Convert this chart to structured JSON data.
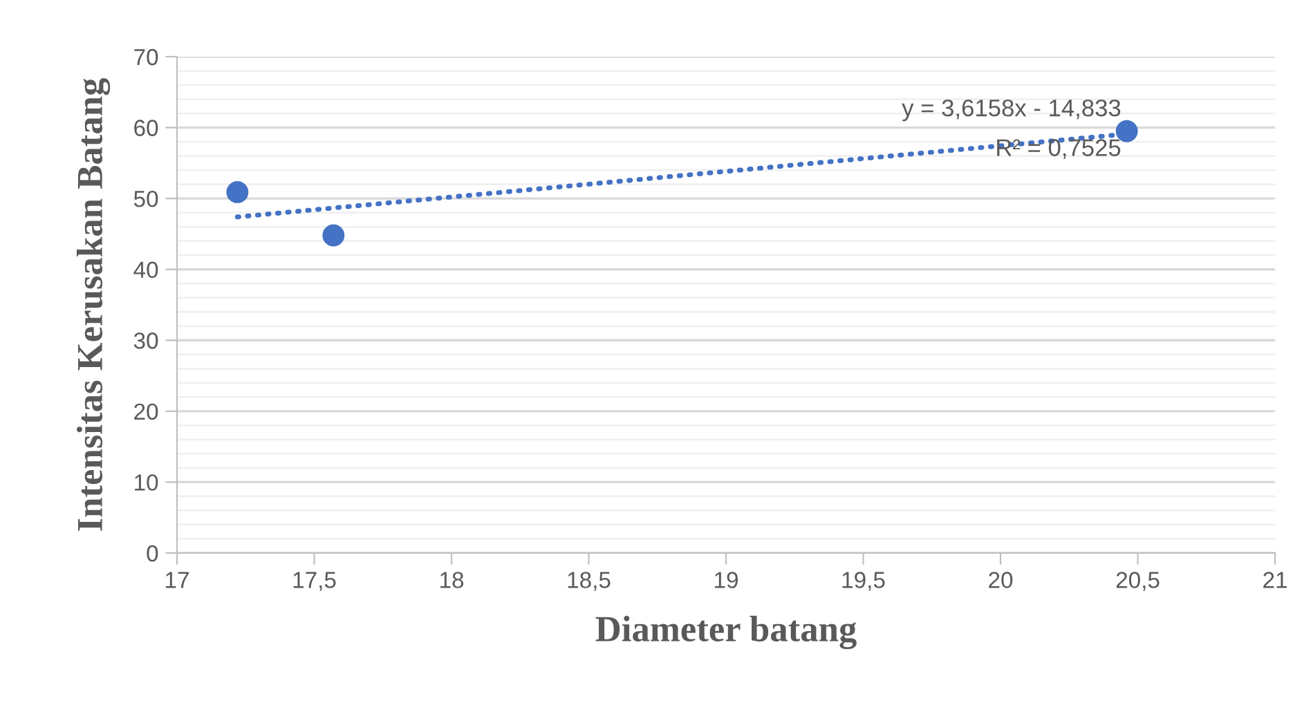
{
  "chart_data": {
    "type": "scatter",
    "xlabel": "Diameter batang",
    "ylabel": "Intensitas Kerusakan Batang",
    "series": [
      {
        "color": "#4472c4",
        "x": [
          17.22,
          17.57,
          20.46
        ],
        "values": [
          50.9,
          44.8,
          59.5
        ],
        "marker": "circle"
      },
      {
        "type": "line",
        "color": "#4472c4",
        "x": [
          17.22,
          20.46
        ],
        "values": [
          47.4,
          59.1
        ],
        "line_style": "dotted",
        "marker": "none"
      }
    ],
    "annotations": [
      "y = 3,6158x - 14,833",
      "R² = 0,7525"
    ],
    "xlim": [
      17,
      21
    ],
    "xticks": [
      17,
      {
        "value": 17.5,
        "label": "17,5"
      },
      18,
      {
        "value": 18.5,
        "label": "18,5"
      },
      19,
      {
        "value": 19.5,
        "label": "19,5"
      },
      20,
      {
        "value": 20.5,
        "label": "20,5"
      },
      21
    ],
    "ylim": [
      0,
      70
    ],
    "yticks": [
      0,
      {
        "value": 2,
        "label": null
      },
      {
        "value": 4,
        "label": null
      },
      {
        "value": 6,
        "label": null
      },
      {
        "value": 8,
        "label": null
      },
      10,
      {
        "value": 12,
        "label": null
      },
      {
        "value": 14,
        "label": null
      },
      {
        "value": 16,
        "label": null
      },
      {
        "value": 18,
        "label": null
      },
      20,
      {
        "value": 22,
        "label": null
      },
      {
        "value": 24,
        "label": null
      },
      {
        "value": 26,
        "label": null
      },
      {
        "value": 28,
        "label": null
      },
      30,
      {
        "value": 32,
        "label": null
      },
      {
        "value": 34,
        "label": null
      },
      {
        "value": 36,
        "label": null
      },
      {
        "value": 38,
        "label": null
      },
      40,
      {
        "value": 42,
        "label": null
      },
      {
        "value": 44,
        "label": null
      },
      {
        "value": 46,
        "label": null
      },
      {
        "value": 48,
        "label": null
      },
      50,
      {
        "value": 52,
        "label": null
      },
      {
        "value": 54,
        "label": null
      },
      {
        "value": 56,
        "label": null
      },
      {
        "value": 58,
        "label": null
      },
      60,
      {
        "value": 62,
        "label": null
      },
      {
        "value": 64,
        "label": null
      },
      {
        "value": 66,
        "label": null
      },
      {
        "value": 68,
        "label": null
      },
      70
    ],
    "grid": "y",
    "legend": false
  }
}
